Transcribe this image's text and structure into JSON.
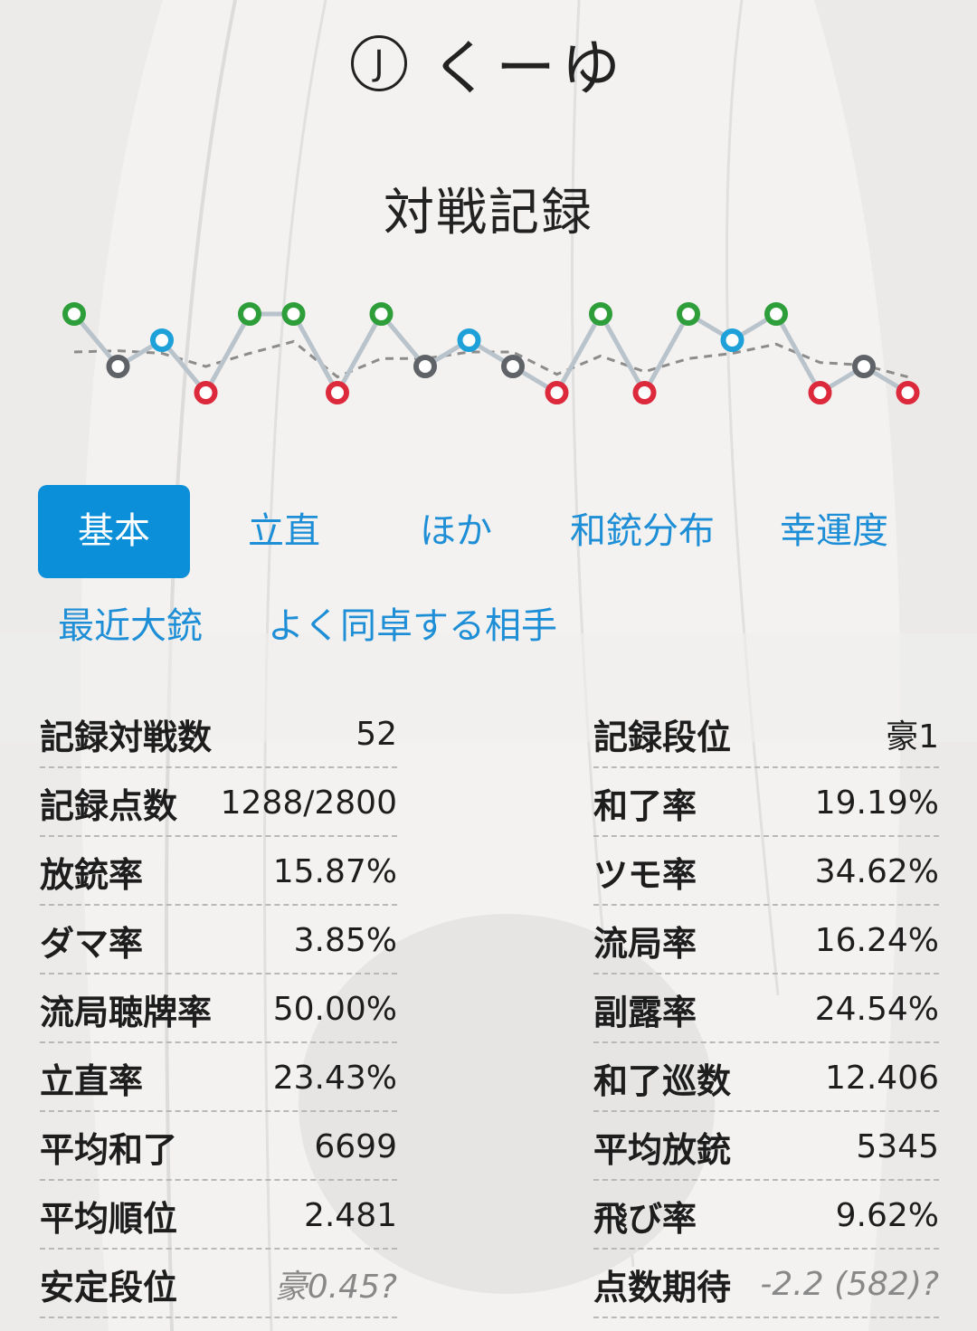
{
  "header": {
    "badge": "J",
    "name": "くーゆ"
  },
  "title": "対戦記録",
  "chart_data": {
    "type": "line",
    "y_axis": "rank (1 = top, 4 = bottom)",
    "ranks": [
      1,
      3,
      2,
      4,
      1,
      1,
      4,
      1,
      3,
      2,
      3,
      4,
      1,
      4,
      1,
      2,
      1,
      4,
      3,
      4
    ],
    "trend": [
      2.45,
      2.4,
      2.5,
      3.0,
      2.5,
      2.05,
      3.4,
      2.7,
      2.7,
      2.45,
      2.45,
      3.3,
      2.6,
      3.2,
      2.7,
      2.5,
      2.15,
      2.85,
      2.95,
      3.4
    ],
    "rank_colors": {
      "1": "#2e9e3a",
      "2": "#1ea0d8",
      "3": "#5f6368",
      "4": "#dc2a3c"
    },
    "line_color": "#b9c3cc",
    "trend_color": "#8c8c8c"
  },
  "tabs": [
    {
      "label": "基本",
      "active": true
    },
    {
      "label": "立直",
      "active": false
    },
    {
      "label": "ほか",
      "active": false
    },
    {
      "label": "和銃分布",
      "active": false
    },
    {
      "label": "幸運度",
      "active": false
    },
    {
      "label": "最近大銃",
      "active": false
    },
    {
      "label": "よく同卓する相手",
      "active": false
    }
  ],
  "stats_left": [
    {
      "label": "記録対戦数",
      "value": "52"
    },
    {
      "label": "記録点数",
      "value": "1288/2800"
    },
    {
      "label": "放銃率",
      "value": "15.87%"
    },
    {
      "label": "ダマ率",
      "value": "3.85%"
    },
    {
      "label": "流局聴牌率",
      "value": "50.00%"
    },
    {
      "label": "立直率",
      "value": "23.43%"
    },
    {
      "label": "平均和了",
      "value": "6699"
    },
    {
      "label": "平均順位",
      "value": "2.481"
    },
    {
      "label": "安定段位",
      "value": "豪0.45?"
    }
  ],
  "stats_right": [
    {
      "label": "記録段位",
      "value": "豪1"
    },
    {
      "label": "和了率",
      "value": "19.19%"
    },
    {
      "label": "ツモ率",
      "value": "34.62%"
    },
    {
      "label": "流局率",
      "value": "16.24%"
    },
    {
      "label": "副露率",
      "value": "24.54%"
    },
    {
      "label": "和了巡数",
      "value": "12.406"
    },
    {
      "label": "平均放銃",
      "value": "5345"
    },
    {
      "label": "飛び率",
      "value": "9.62%"
    },
    {
      "label": "点数期待",
      "value": "-2.2 (582)?"
    }
  ]
}
